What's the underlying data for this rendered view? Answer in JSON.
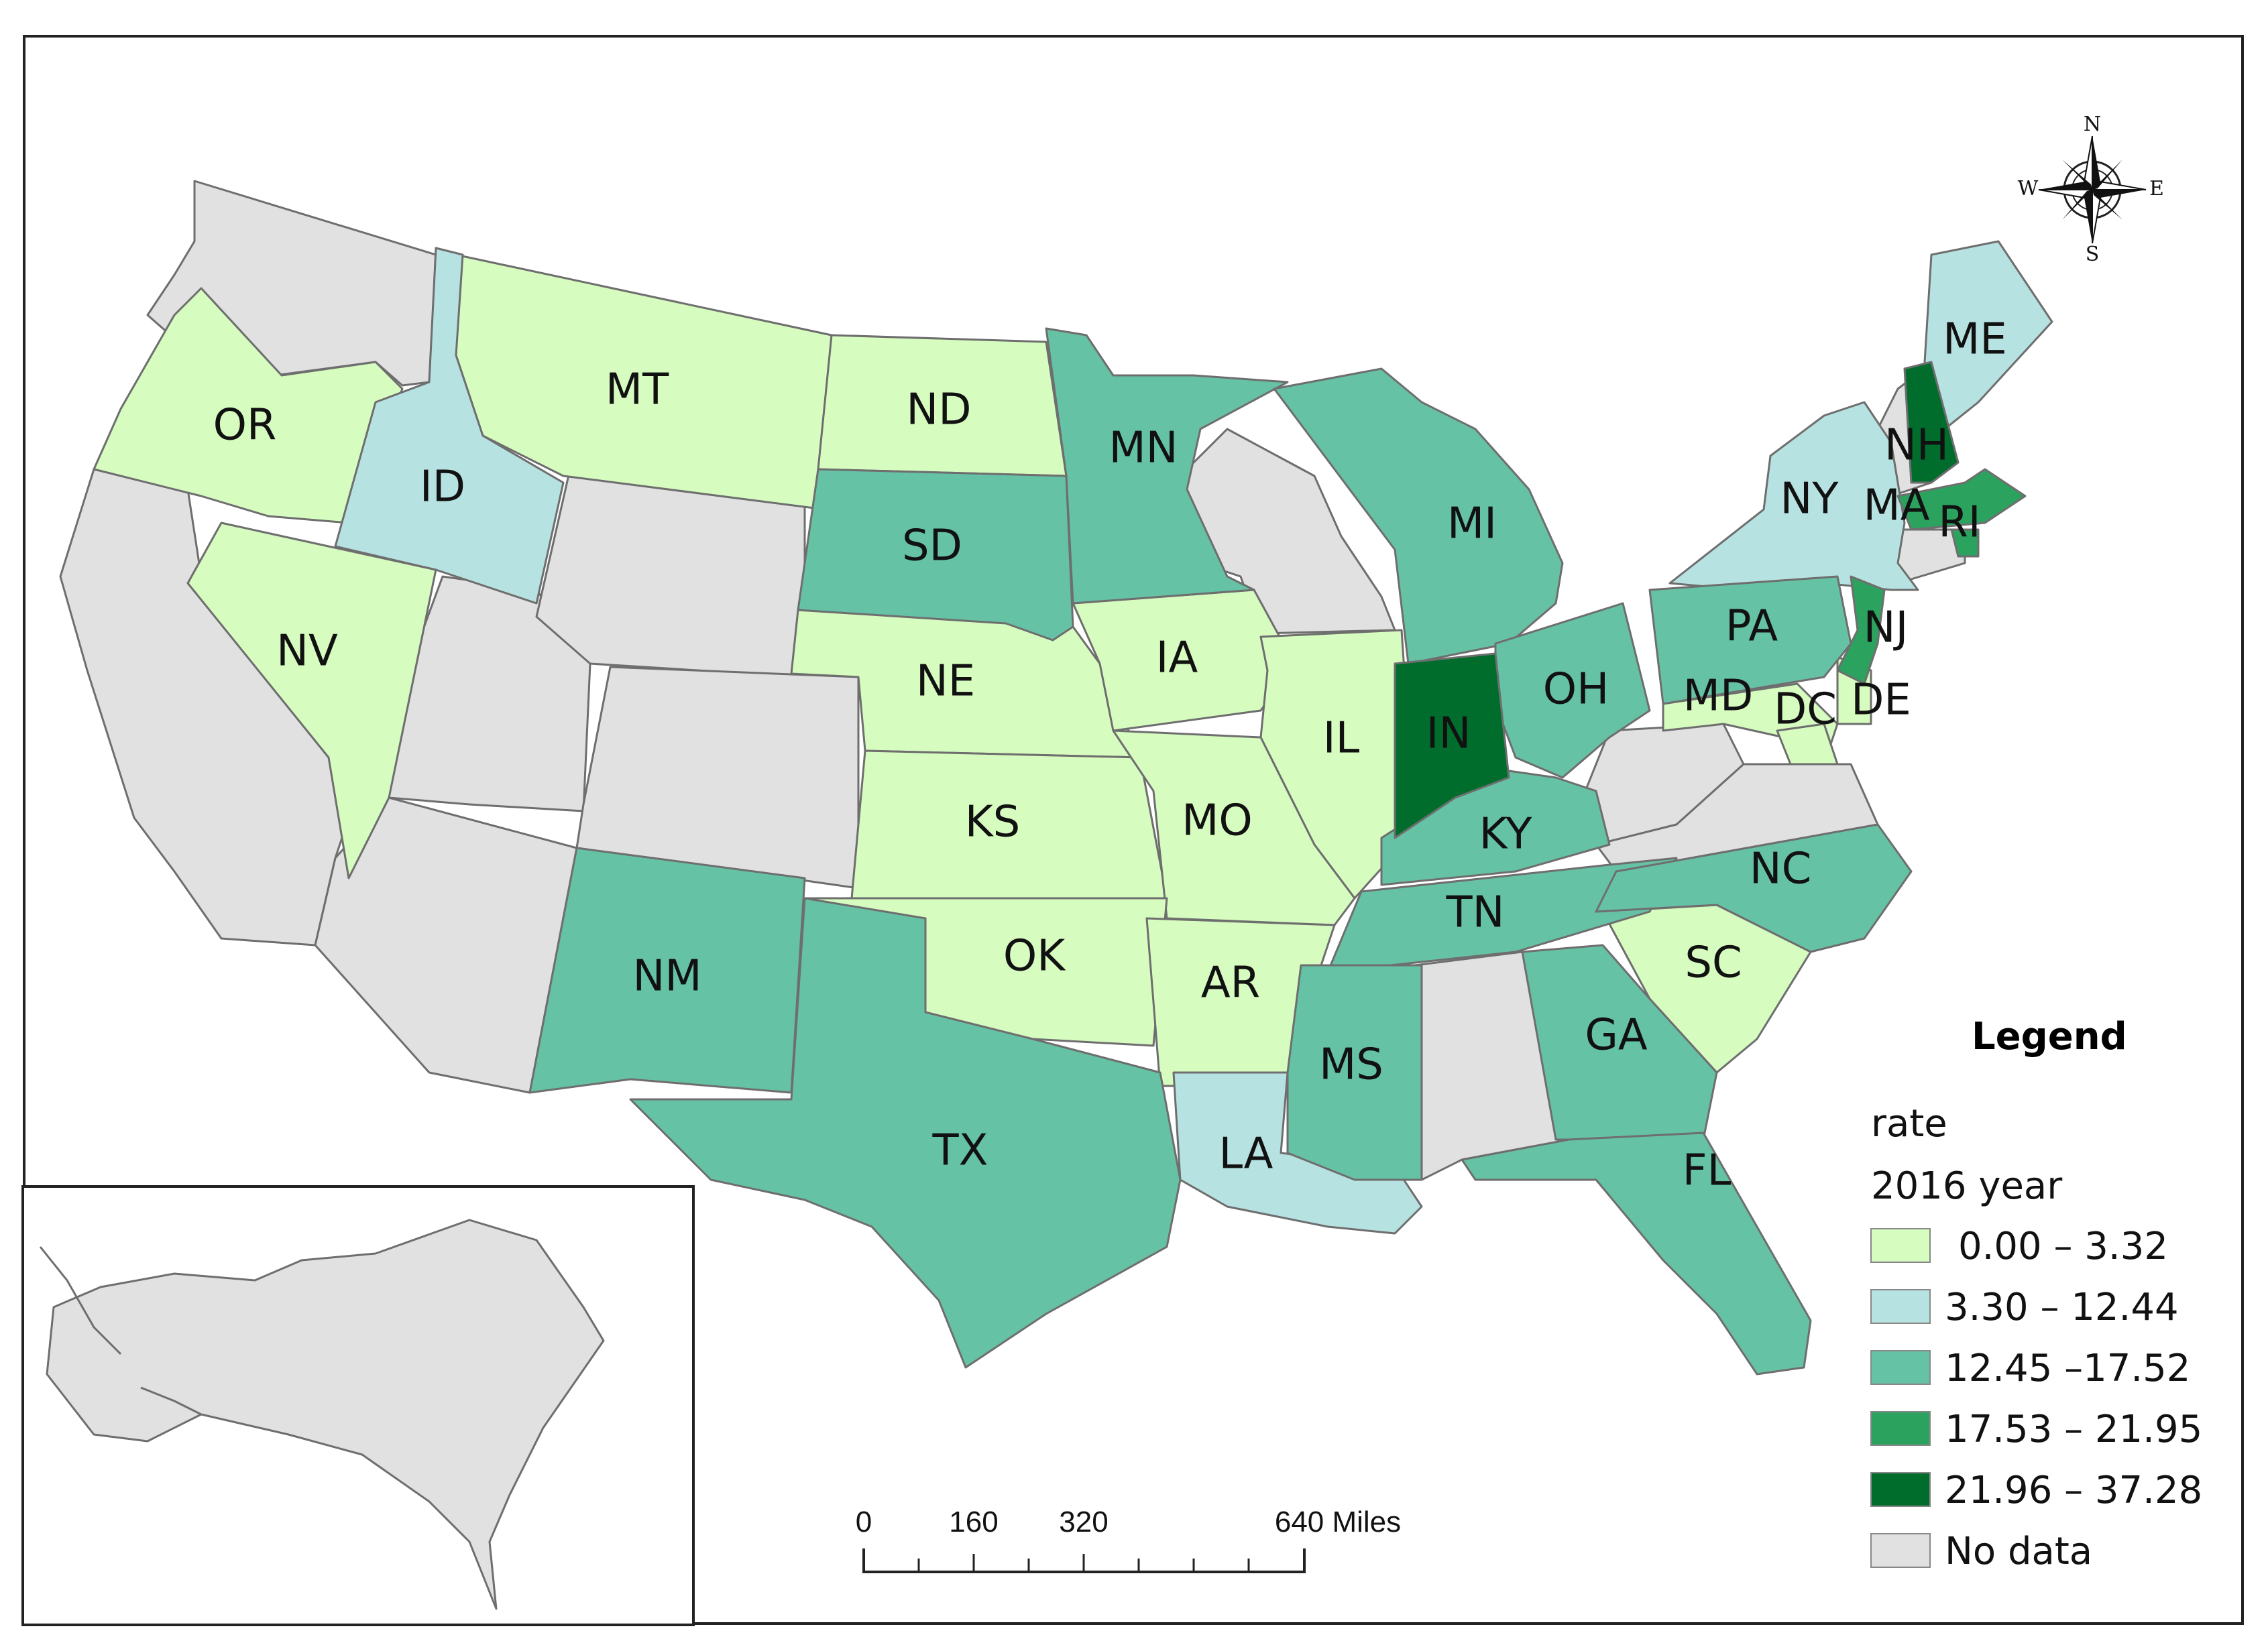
{
  "colors": {
    "c1": "#d6fcc0",
    "c2": "#b7e2e2",
    "c3": "#66c2a5",
    "c4": "#2ca25f",
    "c5": "#006d2c",
    "nodata": "#e1e1e1",
    "border": "#6e6e6e"
  },
  "legend": {
    "title": "Legend",
    "field": "rate",
    "year": "2016 year",
    "classes": [
      {
        "label": "0.00 – 3.32",
        "color": "#d6fcc0"
      },
      {
        "label": "3.30 – 12.44",
        "color": "#b7e2e2"
      },
      {
        "label": "12.45 –17.52",
        "color": "#66c2a5"
      },
      {
        "label": "17.53 – 21.95",
        "color": "#2ca25f"
      },
      {
        "label": "21.96 – 37.28",
        "color": "#006d2c"
      },
      {
        "label": "No data",
        "color": "#e1e1e1"
      }
    ]
  },
  "scale_bar": {
    "labels": [
      "0",
      "160",
      "320",
      "640 Miles"
    ]
  },
  "compass": {
    "n": "N",
    "s": "S",
    "e": "E",
    "w": "W"
  },
  "states": [
    {
      "abbr": "OR",
      "class": 1
    },
    {
      "abbr": "ID",
      "class": 2
    },
    {
      "abbr": "MT",
      "class": 1
    },
    {
      "abbr": "ND",
      "class": 1
    },
    {
      "abbr": "MN",
      "class": 3
    },
    {
      "abbr": "SD",
      "class": 3
    },
    {
      "abbr": "NV",
      "class": 1
    },
    {
      "abbr": "NE",
      "class": 1
    },
    {
      "abbr": "IA",
      "class": 1
    },
    {
      "abbr": "MI",
      "class": 3
    },
    {
      "abbr": "IL",
      "class": 1
    },
    {
      "abbr": "IN",
      "class": 5
    },
    {
      "abbr": "OH",
      "class": 3
    },
    {
      "abbr": "KS",
      "class": 1
    },
    {
      "abbr": "MO",
      "class": 1
    },
    {
      "abbr": "KY",
      "class": 3
    },
    {
      "abbr": "TN",
      "class": 3
    },
    {
      "abbr": "NC",
      "class": 3
    },
    {
      "abbr": "OK",
      "class": 1
    },
    {
      "abbr": "AR",
      "class": 1
    },
    {
      "abbr": "NM",
      "class": 3
    },
    {
      "abbr": "TX",
      "class": 3
    },
    {
      "abbr": "LA",
      "class": 2
    },
    {
      "abbr": "MS",
      "class": 3
    },
    {
      "abbr": "GA",
      "class": 3
    },
    {
      "abbr": "SC",
      "class": 1
    },
    {
      "abbr": "FL",
      "class": 3
    },
    {
      "abbr": "PA",
      "class": 3
    },
    {
      "abbr": "NJ",
      "class": 4
    },
    {
      "abbr": "MD",
      "class": 1
    },
    {
      "abbr": "DC",
      "class": 1
    },
    {
      "abbr": "DE",
      "class": 1
    },
    {
      "abbr": "NY",
      "class": 2
    },
    {
      "abbr": "MA",
      "class": 4
    },
    {
      "abbr": "RI",
      "class": 4
    },
    {
      "abbr": "NH",
      "class": 5
    },
    {
      "abbr": "ME",
      "class": 2
    }
  ]
}
